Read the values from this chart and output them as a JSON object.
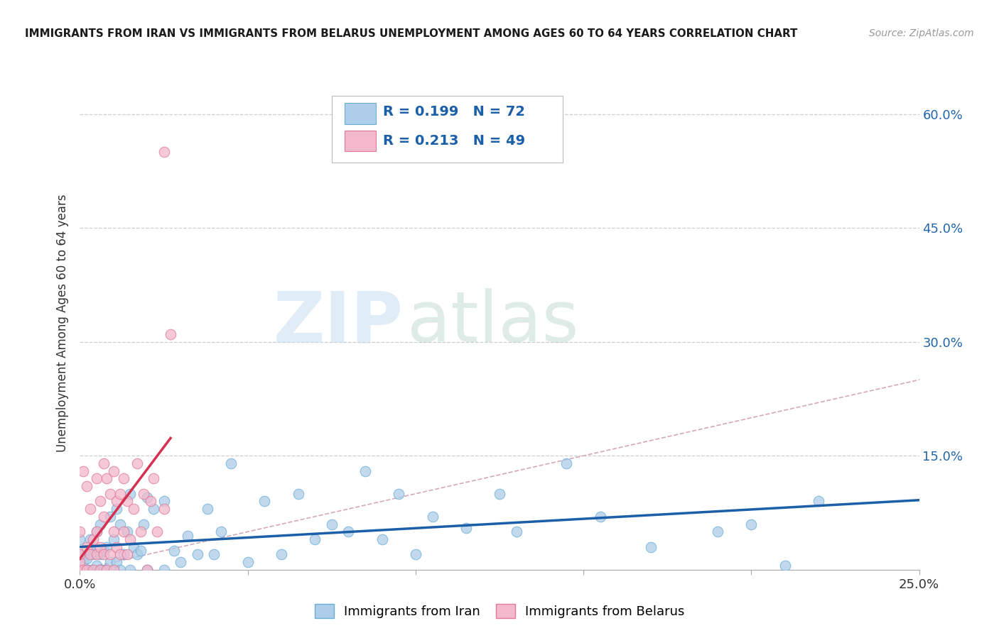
{
  "title": "IMMIGRANTS FROM IRAN VS IMMIGRANTS FROM BELARUS UNEMPLOYMENT AMONG AGES 60 TO 64 YEARS CORRELATION CHART",
  "source": "Source: ZipAtlas.com",
  "ylabel": "Unemployment Among Ages 60 to 64 years",
  "xlim": [
    0.0,
    0.25
  ],
  "ylim": [
    0.0,
    0.65
  ],
  "iran_color": "#aecde8",
  "iran_edge_color": "#6aaed6",
  "belarus_color": "#f4b8cc",
  "belarus_edge_color": "#e07898",
  "iran_line_color": "#1a5fa8",
  "belarus_line_color": "#d63050",
  "diagonal_color": "#d0a0b0",
  "R_iran": "0.199",
  "N_iran": "72",
  "R_belarus": "0.213",
  "N_belarus": "49",
  "legend_label_iran": "Immigrants from Iran",
  "legend_label_belarus": "Immigrants from Belarus",
  "watermark_zip": "ZIP",
  "watermark_atlas": "atlas",
  "ytick_positions": [
    0.0,
    0.15,
    0.3,
    0.45,
    0.6
  ],
  "ytick_labels": [
    "",
    "15.0%",
    "30.0%",
    "45.0%",
    "60.0%"
  ],
  "xtick_positions": [
    0.0,
    0.05,
    0.1,
    0.15,
    0.2,
    0.25
  ],
  "xtick_labels": [
    "0.0%",
    "",
    "",
    "",
    "",
    "25.0%"
  ],
  "iran_x": [
    0.0,
    0.0,
    0.0,
    0.001,
    0.001,
    0.002,
    0.002,
    0.003,
    0.003,
    0.003,
    0.004,
    0.004,
    0.005,
    0.005,
    0.006,
    0.006,
    0.006,
    0.007,
    0.007,
    0.008,
    0.008,
    0.009,
    0.009,
    0.01,
    0.01,
    0.011,
    0.011,
    0.012,
    0.012,
    0.013,
    0.014,
    0.015,
    0.015,
    0.016,
    0.017,
    0.018,
    0.019,
    0.02,
    0.02,
    0.022,
    0.025,
    0.025,
    0.028,
    0.03,
    0.032,
    0.035,
    0.038,
    0.04,
    0.042,
    0.045,
    0.05,
    0.055,
    0.06,
    0.065,
    0.07,
    0.075,
    0.08,
    0.085,
    0.09,
    0.095,
    0.1,
    0.105,
    0.115,
    0.125,
    0.13,
    0.145,
    0.155,
    0.17,
    0.19,
    0.2,
    0.21,
    0.22
  ],
  "iran_y": [
    0.0,
    0.02,
    0.04,
    0.0,
    0.01,
    0.0,
    0.015,
    0.0,
    0.025,
    0.04,
    0.0,
    0.02,
    0.005,
    0.05,
    0.0,
    0.02,
    0.06,
    0.0,
    0.025,
    0.0,
    0.03,
    0.01,
    0.07,
    0.0,
    0.04,
    0.01,
    0.08,
    0.0,
    0.06,
    0.02,
    0.05,
    0.0,
    0.1,
    0.03,
    0.02,
    0.025,
    0.06,
    0.0,
    0.095,
    0.08,
    0.0,
    0.09,
    0.025,
    0.01,
    0.045,
    0.02,
    0.08,
    0.02,
    0.05,
    0.14,
    0.01,
    0.09,
    0.02,
    0.1,
    0.04,
    0.06,
    0.05,
    0.13,
    0.04,
    0.1,
    0.02,
    0.07,
    0.055,
    0.1,
    0.05,
    0.14,
    0.07,
    0.03,
    0.05,
    0.06,
    0.005,
    0.09
  ],
  "belarus_x": [
    0.0,
    0.0,
    0.0,
    0.0,
    0.001,
    0.001,
    0.002,
    0.002,
    0.002,
    0.003,
    0.003,
    0.004,
    0.004,
    0.005,
    0.005,
    0.005,
    0.006,
    0.006,
    0.006,
    0.007,
    0.007,
    0.007,
    0.008,
    0.008,
    0.009,
    0.009,
    0.01,
    0.01,
    0.01,
    0.011,
    0.011,
    0.012,
    0.012,
    0.013,
    0.013,
    0.014,
    0.014,
    0.015,
    0.016,
    0.017,
    0.018,
    0.019,
    0.02,
    0.021,
    0.022,
    0.023,
    0.025,
    0.025,
    0.027
  ],
  "belarus_y": [
    0.0,
    0.01,
    0.02,
    0.05,
    0.0,
    0.13,
    0.0,
    0.03,
    0.11,
    0.02,
    0.08,
    0.0,
    0.04,
    0.02,
    0.05,
    0.12,
    0.0,
    0.03,
    0.09,
    0.02,
    0.07,
    0.14,
    0.0,
    0.12,
    0.02,
    0.1,
    0.0,
    0.05,
    0.13,
    0.03,
    0.09,
    0.02,
    0.1,
    0.05,
    0.12,
    0.02,
    0.09,
    0.04,
    0.08,
    0.14,
    0.05,
    0.1,
    0.0,
    0.09,
    0.12,
    0.05,
    0.08,
    0.55,
    0.31
  ],
  "grid_color": "#cccccc",
  "grid_linestyle": "--"
}
